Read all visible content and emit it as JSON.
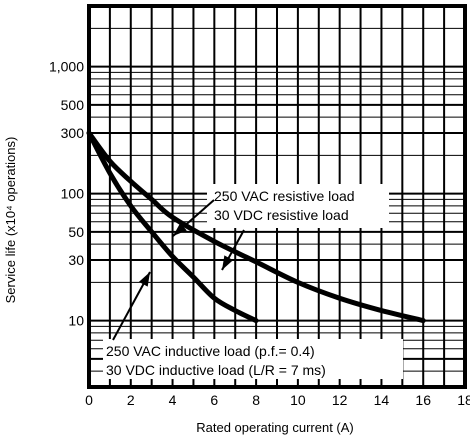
{
  "chart_data": {
    "type": "line",
    "xlabel": "Rated operating current (A)",
    "ylabel": "Service life (x10⁴ operations)",
    "xlim": [
      0,
      18
    ],
    "ylim": [
      3,
      3000
    ],
    "y_scale": "log",
    "grid": true,
    "x_ticks": [
      "0",
      "2",
      "4",
      "6",
      "8",
      "10",
      "12",
      "14",
      "16",
      "18"
    ],
    "y_tick_labels": [
      {
        "value": 10,
        "label": "10"
      },
      {
        "value": 30,
        "label": "30"
      },
      {
        "value": 50,
        "label": "50"
      },
      {
        "value": 100,
        "label": "100"
      },
      {
        "value": 300,
        "label": "300"
      },
      {
        "value": 500,
        "label": "500"
      },
      {
        "value": 1000,
        "label": "1,000"
      }
    ],
    "series": [
      {
        "annotation_lines": [
          "250 VAC resistive load",
          "30 VDC resistive load"
        ],
        "x": [
          0,
          1,
          2,
          3,
          4,
          6,
          8,
          10,
          12,
          14,
          16
        ],
        "y": [
          300,
          180,
          125,
          90,
          65,
          42,
          29,
          20,
          15,
          12,
          10
        ]
      },
      {
        "annotation_lines": [
          "250 VAC inductive load (p.f.= 0.4)",
          "30 VDC inductive load (L/R  =  7 ms)"
        ],
        "x": [
          0,
          1,
          2,
          3,
          4,
          5,
          6,
          7,
          8
        ],
        "y": [
          300,
          145,
          80,
          50,
          32,
          22,
          15,
          12,
          10
        ]
      }
    ]
  }
}
